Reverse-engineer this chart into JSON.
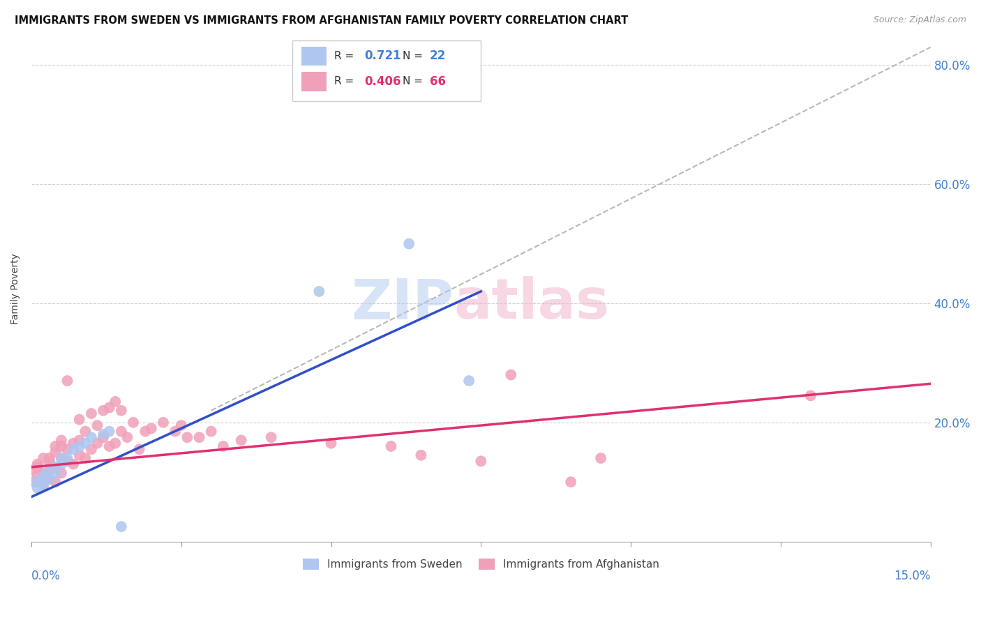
{
  "title": "IMMIGRANTS FROM SWEDEN VS IMMIGRANTS FROM AFGHANISTAN FAMILY POVERTY CORRELATION CHART",
  "source": "Source: ZipAtlas.com",
  "ylabel": "Family Poverty",
  "xlim": [
    0.0,
    0.15
  ],
  "ylim": [
    0.0,
    0.85
  ],
  "right_ytick_labels": [
    "20.0%",
    "40.0%",
    "60.0%",
    "80.0%"
  ],
  "right_yticks": [
    0.2,
    0.4,
    0.6,
    0.8
  ],
  "sweden_color": "#aec6f0",
  "afghanistan_color": "#f0a0b8",
  "sweden_line_color": "#3050c8",
  "afghanistan_line_color": "#e03070",
  "trendline_color": "#b8b8b8",
  "tick_label_color": "#4080d0",
  "background_color": "#ffffff",
  "grid_color": "#cccccc",
  "sweden_x": [
    0.0005,
    0.001,
    0.0015,
    0.002,
    0.002,
    0.003,
    0.003,
    0.004,
    0.004,
    0.005,
    0.005,
    0.006,
    0.007,
    0.008,
    0.009,
    0.01,
    0.012,
    0.013,
    0.015,
    0.048,
    0.063,
    0.073
  ],
  "sweden_y": [
    0.1,
    0.09,
    0.1,
    0.095,
    0.11,
    0.105,
    0.12,
    0.115,
    0.125,
    0.13,
    0.14,
    0.14,
    0.155,
    0.16,
    0.165,
    0.175,
    0.18,
    0.185,
    0.025,
    0.42,
    0.5,
    0.27
  ],
  "afghanistan_x": [
    0.0,
    0.0005,
    0.001,
    0.001,
    0.001,
    0.002,
    0.002,
    0.002,
    0.002,
    0.003,
    0.003,
    0.003,
    0.003,
    0.004,
    0.004,
    0.004,
    0.004,
    0.005,
    0.005,
    0.005,
    0.005,
    0.006,
    0.006,
    0.006,
    0.007,
    0.007,
    0.008,
    0.008,
    0.008,
    0.009,
    0.009,
    0.01,
    0.01,
    0.011,
    0.011,
    0.012,
    0.012,
    0.013,
    0.013,
    0.014,
    0.014,
    0.015,
    0.015,
    0.016,
    0.017,
    0.018,
    0.019,
    0.02,
    0.022,
    0.024,
    0.025,
    0.026,
    0.028,
    0.03,
    0.032,
    0.035,
    0.04,
    0.05,
    0.06,
    0.065,
    0.075,
    0.08,
    0.09,
    0.095,
    0.13
  ],
  "afghanistan_y": [
    0.12,
    0.1,
    0.11,
    0.125,
    0.13,
    0.095,
    0.1,
    0.115,
    0.14,
    0.105,
    0.12,
    0.135,
    0.14,
    0.1,
    0.125,
    0.15,
    0.16,
    0.115,
    0.14,
    0.16,
    0.17,
    0.135,
    0.155,
    0.27,
    0.13,
    0.165,
    0.145,
    0.17,
    0.205,
    0.14,
    0.185,
    0.155,
    0.215,
    0.165,
    0.195,
    0.175,
    0.22,
    0.16,
    0.225,
    0.165,
    0.235,
    0.185,
    0.22,
    0.175,
    0.2,
    0.155,
    0.185,
    0.19,
    0.2,
    0.185,
    0.195,
    0.175,
    0.175,
    0.185,
    0.16,
    0.17,
    0.175,
    0.165,
    0.16,
    0.145,
    0.135,
    0.28,
    0.1,
    0.14,
    0.245
  ],
  "sweden_line_x": [
    0.0,
    0.075
  ],
  "sweden_line_y": [
    0.075,
    0.42
  ],
  "afghanistan_line_x": [
    0.0,
    0.15
  ],
  "afghanistan_line_y": [
    0.125,
    0.265
  ],
  "diag_line_x": [
    0.03,
    0.15
  ],
  "diag_line_y": [
    0.22,
    0.83
  ]
}
